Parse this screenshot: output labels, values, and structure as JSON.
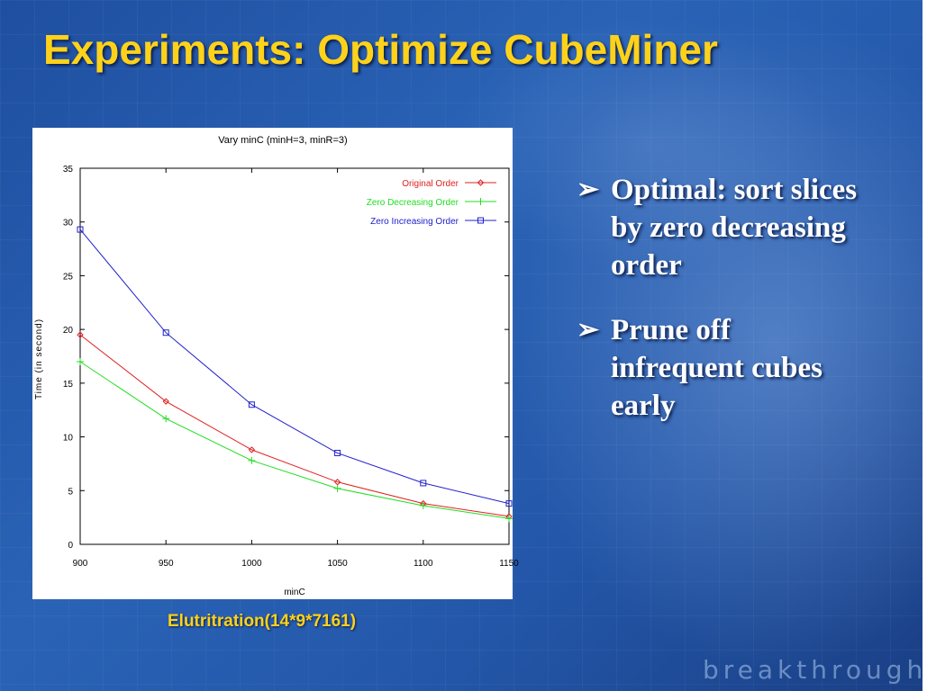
{
  "slide": {
    "title": "Experiments: Optimize CubeMiner",
    "caption": "Elutritration(14*9*7161)",
    "brand": "breakthrough",
    "bullets": [
      {
        "arrow": "➢",
        "text": "Optimal: sort slices by zero decreasing order"
      },
      {
        "arrow": "➢",
        "text": "Prune off infrequent cubes early"
      }
    ],
    "colors": {
      "title": "#ffd21a",
      "bullet": "#ffffff",
      "background": "#2a63b6"
    }
  },
  "chart_data": {
    "type": "line",
    "title": "Vary minC (minH=3, minR=3)",
    "xlabel": "minC",
    "ylabel": "Time (in second)",
    "x": [
      900,
      950,
      1000,
      1050,
      1100,
      1150
    ],
    "xlim": [
      900,
      1150
    ],
    "ylim": [
      0,
      35
    ],
    "xticks": [
      "900",
      "950",
      "1000",
      "1050",
      "1100",
      "1150"
    ],
    "yticks": [
      "0",
      "5",
      "10",
      "15",
      "20",
      "25",
      "30",
      "35"
    ],
    "grid": false,
    "legend_position": "top-right",
    "series": [
      {
        "name": "Original Order",
        "values": [
          19.5,
          13.3,
          8.8,
          5.8,
          3.8,
          2.6
        ],
        "color": "#e02020",
        "marker": "diamond"
      },
      {
        "name": "Zero Decreasing Order",
        "values": [
          17.0,
          11.7,
          7.8,
          5.2,
          3.6,
          2.4
        ],
        "color": "#22dd22",
        "marker": "plus"
      },
      {
        "name": "Zero Increasing Order",
        "values": [
          29.3,
          19.7,
          13.0,
          8.5,
          5.7,
          3.8
        ],
        "color": "#2020cc",
        "marker": "square"
      }
    ]
  }
}
